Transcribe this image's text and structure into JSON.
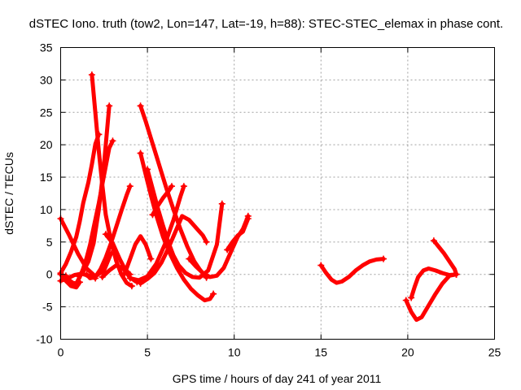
{
  "chart_data": {
    "type": "scatter",
    "title": "dSTEC Iono. truth (tow2, Lon=147, Lat=-19, h=88): STEC-STEC_elemax in phase cont.",
    "xlabel": "GPS time / hours of day 241 of year 2011",
    "ylabel": "dSTEC  / TECUs",
    "xlim": [
      0,
      25
    ],
    "ylim": [
      -10,
      35
    ],
    "xticks": [
      0,
      5,
      10,
      15,
      20,
      25
    ],
    "yticks": [
      -10,
      -5,
      0,
      5,
      10,
      15,
      20,
      25,
      30,
      35
    ],
    "grid": true,
    "legend": "none",
    "color": "#ff0000",
    "marker": "plus",
    "series": [
      {
        "x": [
          0.0,
          0.3,
          0.6,
          0.9,
          1.1
        ],
        "y": [
          0.0,
          -1.0,
          -1.8,
          -2.0,
          -1.2
        ]
      },
      {
        "x": [
          0.0,
          0.5,
          1.0,
          1.5,
          2.0,
          2.5,
          2.9
        ],
        "y": [
          8.6,
          6.0,
          3.2,
          0.9,
          -0.3,
          0.6,
          3.2
        ]
      },
      {
        "x": [
          0.0,
          0.3,
          0.6,
          0.9,
          1.1,
          1.3,
          1.6,
          1.8,
          2.0,
          2.2
        ],
        "y": [
          0.2,
          1.6,
          3.5,
          5.8,
          8.2,
          11.0,
          14.2,
          17.0,
          20.1,
          21.6
        ]
      },
      {
        "x": [
          0.3,
          0.5,
          0.7,
          0.9,
          1.1,
          1.3,
          1.5,
          1.7,
          1.9,
          2.2,
          2.5,
          2.8,
          3.0
        ],
        "y": [
          -0.2,
          -0.9,
          -1.3,
          -1.4,
          -0.4,
          0.9,
          2.6,
          4.6,
          7.2,
          11.0,
          15.3,
          19.5,
          20.6
        ]
      },
      {
        "x": [
          1.0,
          1.3,
          1.6,
          1.9,
          2.2,
          2.5,
          2.8
        ],
        "y": [
          -0.2,
          0.4,
          2.0,
          4.8,
          10.0,
          17.0,
          26.0
        ]
      },
      {
        "x": [
          1.5,
          1.7,
          2.0,
          2.3,
          2.6,
          2.9,
          3.2,
          3.5,
          3.8,
          4.0
        ],
        "y": [
          0.0,
          -0.6,
          -0.4,
          0.8,
          2.6,
          4.8,
          7.3,
          9.8,
          12.2,
          13.6
        ]
      },
      {
        "x": [
          1.8,
          2.0,
          2.2,
          2.4,
          2.6,
          2.9,
          3.2,
          3.5,
          3.8,
          4.1
        ],
        "y": [
          30.8,
          25.0,
          19.0,
          13.8,
          9.2,
          5.2,
          2.1,
          0.0,
          -1.3,
          -1.8
        ]
      },
      {
        "x": [
          0.0,
          0.4,
          0.8,
          1.2,
          1.6,
          2.0
        ],
        "y": [
          -1.0,
          -0.6,
          -0.1,
          0.1,
          -0.2,
          -0.6
        ]
      },
      {
        "x": [
          2.4,
          2.8,
          3.2,
          3.6,
          4.0,
          4.4
        ],
        "y": [
          -0.4,
          0.6,
          1.4,
          0.9,
          -0.5,
          -1.2
        ]
      },
      {
        "x": [
          2.6,
          3.0,
          3.4,
          3.7,
          4.0
        ],
        "y": [
          6.2,
          4.8,
          2.4,
          0.8,
          0.0
        ]
      },
      {
        "x": [
          4.0,
          4.5,
          5.0,
          5.5,
          6.0,
          6.5,
          6.9,
          7.1
        ],
        "y": [
          -0.6,
          -0.9,
          -0.3,
          1.6,
          4.6,
          8.4,
          12.0,
          13.6
        ]
      },
      {
        "x": [
          4.6,
          4.9,
          5.2,
          5.5,
          5.8,
          6.1,
          6.5,
          6.9,
          7.3,
          7.7,
          8.0,
          8.4
        ],
        "y": [
          26.0,
          23.6,
          21.0,
          18.4,
          15.8,
          13.2,
          10.0,
          7.0,
          4.3,
          2.0,
          0.8,
          -0.5
        ]
      },
      {
        "x": [
          4.6,
          4.9,
          5.2,
          5.5,
          5.9,
          6.3,
          6.7,
          7.1,
          7.5,
          7.9,
          8.3,
          8.6,
          8.8
        ],
        "y": [
          18.7,
          15.4,
          12.2,
          9.2,
          5.8,
          3.2,
          1.0,
          -0.8,
          -2.2,
          -3.2,
          -4.0,
          -3.8,
          -3.0
        ]
      },
      {
        "x": [
          5.0,
          5.3,
          5.6,
          5.9,
          6.2,
          6.5,
          6.8,
          7.2,
          7.6,
          8.0,
          8.5,
          9.0,
          9.3
        ],
        "y": [
          16.2,
          13.2,
          10.2,
          7.5,
          5.0,
          2.9,
          1.4,
          0.2,
          -0.4,
          -0.5,
          0.6,
          4.6,
          10.9
        ]
      },
      {
        "x": [
          4.6,
          5.0,
          5.4,
          5.8,
          6.2,
          6.6,
          7.0,
          7.4,
          7.8,
          8.2,
          8.4
        ],
        "y": [
          -1.4,
          -0.7,
          0.2,
          1.8,
          4.0,
          6.5,
          9.0,
          8.4,
          7.2,
          6.0,
          5.0
        ]
      },
      {
        "x": [
          5.3,
          5.6,
          5.9,
          6.2,
          6.4
        ],
        "y": [
          9.2,
          10.6,
          11.8,
          12.8,
          13.6
        ]
      },
      {
        "x": [
          3.7,
          4.0,
          4.3,
          4.6,
          4.9,
          5.2
        ],
        "y": [
          0.2,
          2.4,
          4.6,
          5.9,
          4.6,
          2.4
        ]
      },
      {
        "x": [
          7.4,
          7.8,
          8.2,
          8.6,
          9.0,
          9.4,
          9.8,
          10.2,
          10.5,
          10.8
        ],
        "y": [
          2.4,
          1.2,
          0.2,
          -0.4,
          -0.2,
          1.0,
          3.4,
          5.8,
          7.0,
          9.0
        ]
      },
      {
        "x": [
          9.6,
          9.9,
          10.2,
          10.5,
          10.8
        ],
        "y": [
          3.8,
          5.0,
          6.0,
          6.6,
          8.6
        ]
      },
      {
        "x": [
          15.0,
          15.3,
          15.6,
          15.9,
          16.2,
          16.6,
          17.0,
          17.4,
          17.8,
          18.2,
          18.6
        ],
        "y": [
          1.4,
          0.2,
          -0.8,
          -1.3,
          -1.1,
          -0.4,
          0.6,
          1.4,
          2.0,
          2.3,
          2.4
        ]
      },
      {
        "x": [
          19.9,
          20.2,
          20.5,
          20.8,
          21.2,
          21.6,
          22.0,
          22.4,
          22.8
        ],
        "y": [
          -4.0,
          -5.8,
          -7.0,
          -6.6,
          -4.8,
          -3.0,
          -1.4,
          -0.2,
          0.0
        ]
      },
      {
        "x": [
          20.2,
          20.4,
          20.6,
          20.9,
          21.2,
          21.6,
          22.0,
          22.4,
          22.8
        ],
        "y": [
          -3.6,
          -1.9,
          -0.4,
          0.6,
          0.9,
          0.6,
          0.2,
          -0.1,
          0.0
        ]
      },
      {
        "x": [
          21.5,
          21.8,
          22.1,
          22.4,
          22.7,
          22.8
        ],
        "y": [
          5.2,
          4.2,
          3.2,
          2.0,
          0.8,
          0.0
        ]
      }
    ]
  }
}
